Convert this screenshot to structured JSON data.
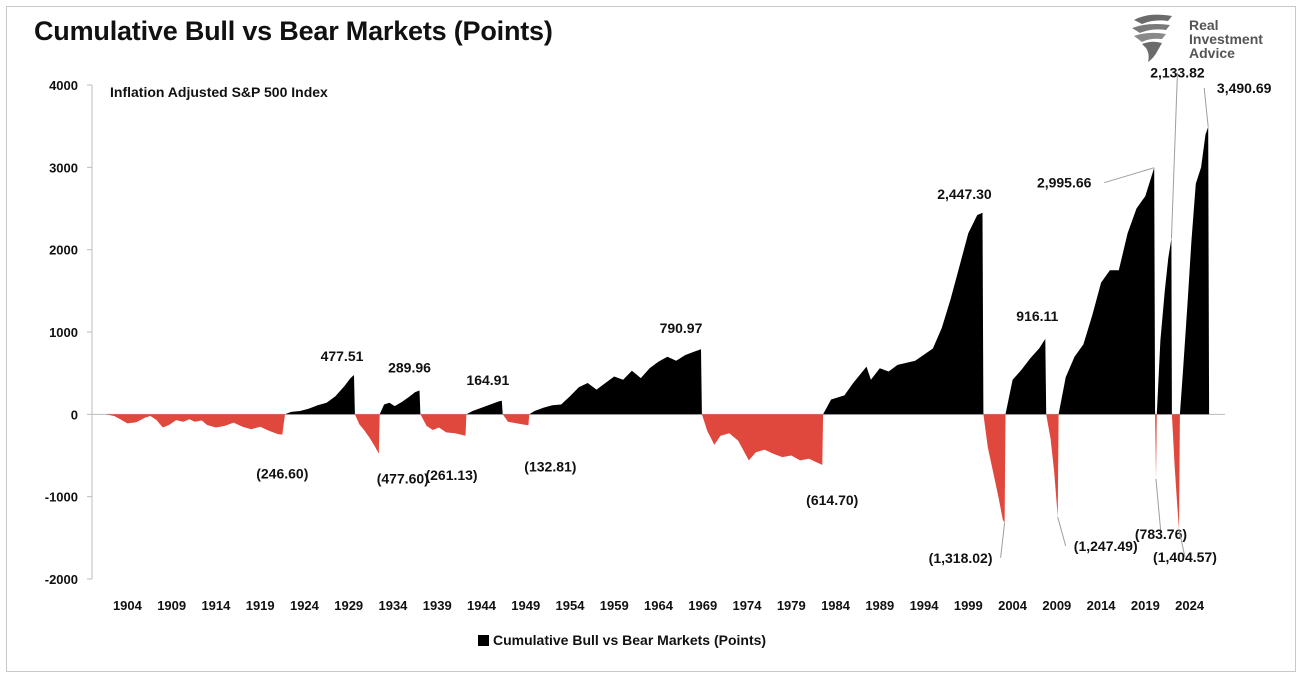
{
  "brand": {
    "line1": "Real",
    "line2": "Investment",
    "line3": "Advice",
    "color": "#555555"
  },
  "chart_data": {
    "type": "area",
    "title": "Cumulative Bull vs Bear Markets (Points)",
    "subtitle": "Inflation Adjusted S&P 500 Index",
    "ylim": [
      -2000,
      4000
    ],
    "yticks": [
      -2000,
      -1000,
      0,
      1000,
      2000,
      3000,
      4000
    ],
    "xlim": [
      1900,
      2028
    ],
    "xticks": [
      "1904",
      "1909",
      "1914",
      "1919",
      "1924",
      "1929",
      "1934",
      "1939",
      "1944",
      "1949",
      "1954",
      "1959",
      "1964",
      "1969",
      "1974",
      "1979",
      "1984",
      "1989",
      "1994",
      "1999",
      "2004",
      "2009",
      "2014",
      "2019",
      "2024"
    ],
    "grid": false,
    "legend": {
      "position": "bottom-center",
      "label": "Cumulative Bull vs Bear Markets (Points)"
    },
    "colors": {
      "bull": "#000000",
      "bear": "#e0473d"
    },
    "segments": [
      {
        "kind": "bear",
        "start": 1901.5,
        "end": 1921.8,
        "trough": -246.6,
        "label": "(246.60)",
        "path": [
          [
            1901.5,
            0
          ],
          [
            1902.5,
            -20
          ],
          [
            1903.2,
            -60
          ],
          [
            1904,
            -110
          ],
          [
            1905,
            -95
          ],
          [
            1906,
            -40
          ],
          [
            1906.6,
            -20
          ],
          [
            1907.3,
            -70
          ],
          [
            1908,
            -160
          ],
          [
            1908.7,
            -130
          ],
          [
            1909.5,
            -70
          ],
          [
            1910.3,
            -90
          ],
          [
            1911,
            -60
          ],
          [
            1911.6,
            -90
          ],
          [
            1912.4,
            -75
          ],
          [
            1913,
            -130
          ],
          [
            1914,
            -160
          ],
          [
            1915,
            -140
          ],
          [
            1916,
            -100
          ],
          [
            1917,
            -150
          ],
          [
            1918,
            -180
          ],
          [
            1919,
            -150
          ],
          [
            1920,
            -200
          ],
          [
            1921,
            -240
          ],
          [
            1921.5,
            -246.6
          ],
          [
            1921.8,
            0
          ]
        ]
      },
      {
        "kind": "bull",
        "start": 1921.8,
        "end": 1929.7,
        "peak": 477.51,
        "label": "477.51",
        "path": [
          [
            1921.8,
            0
          ],
          [
            1922.5,
            30
          ],
          [
            1923.5,
            40
          ],
          [
            1924.5,
            70
          ],
          [
            1925.5,
            110
          ],
          [
            1926.5,
            140
          ],
          [
            1927.5,
            220
          ],
          [
            1928.5,
            340
          ],
          [
            1929.2,
            440
          ],
          [
            1929.6,
            477.51
          ],
          [
            1929.7,
            0
          ]
        ]
      },
      {
        "kind": "bear",
        "start": 1929.7,
        "end": 1932.5,
        "trough": -477.6,
        "label": "(477.60)",
        "path": [
          [
            1929.7,
            0
          ],
          [
            1930.2,
            -120
          ],
          [
            1930.8,
            -200
          ],
          [
            1931.4,
            -290
          ],
          [
            1932,
            -400
          ],
          [
            1932.4,
            -477.6
          ],
          [
            1932.5,
            0
          ]
        ]
      },
      {
        "kind": "bull",
        "start": 1932.5,
        "end": 1937.1,
        "peak": 289.96,
        "label": "289.96",
        "path": [
          [
            1932.5,
            0
          ],
          [
            1933,
            120
          ],
          [
            1933.6,
            140
          ],
          [
            1934.2,
            100
          ],
          [
            1935,
            150
          ],
          [
            1935.8,
            210
          ],
          [
            1936.5,
            270
          ],
          [
            1937,
            289.96
          ],
          [
            1937.1,
            0
          ]
        ]
      },
      {
        "kind": "bear",
        "start": 1937.1,
        "end": 1942.3,
        "trough": -261.13,
        "label": "(261.13)",
        "path": [
          [
            1937.1,
            0
          ],
          [
            1937.8,
            -140
          ],
          [
            1938.5,
            -190
          ],
          [
            1939.2,
            -160
          ],
          [
            1940,
            -220
          ],
          [
            1941,
            -230
          ],
          [
            1941.8,
            -250
          ],
          [
            1942.2,
            -261.13
          ],
          [
            1942.3,
            0
          ]
        ]
      },
      {
        "kind": "bull",
        "start": 1942.3,
        "end": 1946.4,
        "peak": 164.91,
        "label": "164.91",
        "path": [
          [
            1942.3,
            0
          ],
          [
            1943,
            40
          ],
          [
            1944,
            80
          ],
          [
            1945,
            120
          ],
          [
            1946,
            160
          ],
          [
            1946.3,
            164.91
          ],
          [
            1946.4,
            0
          ]
        ]
      },
      {
        "kind": "bear",
        "start": 1946.4,
        "end": 1949.4,
        "trough": -132.81,
        "label": "(132.81)",
        "path": [
          [
            1946.4,
            0
          ],
          [
            1947,
            -90
          ],
          [
            1948,
            -110
          ],
          [
            1948.8,
            -125
          ],
          [
            1949.3,
            -132.81
          ],
          [
            1949.4,
            0
          ]
        ]
      },
      {
        "kind": "bull",
        "start": 1949.4,
        "end": 1968.9,
        "peak": 790.97,
        "label": "790.97",
        "path": [
          [
            1949.4,
            0
          ],
          [
            1950,
            40
          ],
          [
            1951,
            80
          ],
          [
            1952,
            110
          ],
          [
            1953,
            120
          ],
          [
            1954,
            220
          ],
          [
            1955,
            330
          ],
          [
            1956,
            380
          ],
          [
            1957,
            300
          ],
          [
            1958,
            380
          ],
          [
            1959,
            460
          ],
          [
            1960,
            420
          ],
          [
            1961,
            530
          ],
          [
            1962,
            440
          ],
          [
            1963,
            560
          ],
          [
            1964,
            640
          ],
          [
            1965,
            700
          ],
          [
            1966,
            650
          ],
          [
            1967,
            720
          ],
          [
            1968,
            760
          ],
          [
            1968.8,
            790.97
          ],
          [
            1968.9,
            0
          ]
        ]
      },
      {
        "kind": "bear",
        "start": 1968.9,
        "end": 1982.6,
        "trough": -614.7,
        "label": "(614.70)",
        "path": [
          [
            1968.9,
            0
          ],
          [
            1969.5,
            -200
          ],
          [
            1970.3,
            -370
          ],
          [
            1971,
            -260
          ],
          [
            1972,
            -230
          ],
          [
            1973,
            -320
          ],
          [
            1974.2,
            -560
          ],
          [
            1975,
            -460
          ],
          [
            1976,
            -430
          ],
          [
            1977,
            -480
          ],
          [
            1978,
            -520
          ],
          [
            1979,
            -500
          ],
          [
            1980,
            -560
          ],
          [
            1981,
            -540
          ],
          [
            1982,
            -590
          ],
          [
            1982.5,
            -614.7
          ],
          [
            1982.6,
            0
          ]
        ]
      },
      {
        "kind": "bull",
        "start": 1982.6,
        "end": 2000.7,
        "peak": 2447.3,
        "label": "2,447.30",
        "path": [
          [
            1982.6,
            0
          ],
          [
            1983.5,
            180
          ],
          [
            1985,
            230
          ],
          [
            1986,
            380
          ],
          [
            1987.5,
            580
          ],
          [
            1988,
            420
          ],
          [
            1989,
            560
          ],
          [
            1990,
            520
          ],
          [
            1991,
            600
          ],
          [
            1993,
            650
          ],
          [
            1995,
            800
          ],
          [
            1996,
            1050
          ],
          [
            1997,
            1400
          ],
          [
            1998,
            1800
          ],
          [
            1999,
            2200
          ],
          [
            2000,
            2420
          ],
          [
            2000.6,
            2447.3
          ],
          [
            2000.7,
            0
          ]
        ]
      },
      {
        "kind": "bear",
        "start": 2000.7,
        "end": 2003.2,
        "trough": -1318.02,
        "label": "(1,318.02)",
        "path": [
          [
            2000.7,
            0
          ],
          [
            2001.2,
            -400
          ],
          [
            2001.8,
            -700
          ],
          [
            2002.4,
            -1000
          ],
          [
            2002.9,
            -1280
          ],
          [
            2003.1,
            -1318.02
          ],
          [
            2003.2,
            0
          ]
        ]
      },
      {
        "kind": "bull",
        "start": 2003.2,
        "end": 2007.8,
        "peak": 916.11,
        "label": "916.11",
        "path": [
          [
            2003.2,
            0
          ],
          [
            2004,
            420
          ],
          [
            2005,
            540
          ],
          [
            2006,
            680
          ],
          [
            2007,
            800
          ],
          [
            2007.7,
            916.11
          ],
          [
            2007.8,
            0
          ]
        ]
      },
      {
        "kind": "bear",
        "start": 2007.8,
        "end": 2009.2,
        "trough": -1247.49,
        "label": "(1,247.49)",
        "path": [
          [
            2007.8,
            0
          ],
          [
            2008.3,
            -300
          ],
          [
            2008.7,
            -700
          ],
          [
            2009,
            -1100
          ],
          [
            2009.1,
            -1247.49
          ],
          [
            2009.2,
            0
          ]
        ]
      },
      {
        "kind": "bull",
        "start": 2009.2,
        "end": 2020.1,
        "peak": 2995.66,
        "label": "2,995.66",
        "path": [
          [
            2009.2,
            0
          ],
          [
            2010,
            450
          ],
          [
            2011,
            700
          ],
          [
            2012,
            850
          ],
          [
            2013,
            1200
          ],
          [
            2014,
            1600
          ],
          [
            2015,
            1750
          ],
          [
            2016,
            1750
          ],
          [
            2017,
            2200
          ],
          [
            2018,
            2500
          ],
          [
            2019,
            2650
          ],
          [
            2020,
            2995.66
          ],
          [
            2020.1,
            0
          ]
        ]
      },
      {
        "kind": "bear",
        "start": 2020.1,
        "end": 2020.3,
        "trough": -783.76,
        "label": "(783.76)",
        "path": [
          [
            2020.1,
            0
          ],
          [
            2020.2,
            -783.76
          ],
          [
            2020.3,
            0
          ]
        ]
      },
      {
        "kind": "bull",
        "start": 2020.3,
        "end": 2022.0,
        "peak": 2133.82,
        "label": "2,133.82",
        "path": [
          [
            2020.3,
            0
          ],
          [
            2020.7,
            900
          ],
          [
            2021.2,
            1500
          ],
          [
            2021.6,
            1900
          ],
          [
            2021.95,
            2133.82
          ],
          [
            2022.0,
            0
          ]
        ]
      },
      {
        "kind": "bear",
        "start": 2022.0,
        "end": 2022.9,
        "trough": -1404.57,
        "label": "(1,404.57)",
        "path": [
          [
            2022.0,
            0
          ],
          [
            2022.3,
            -600
          ],
          [
            2022.6,
            -1100
          ],
          [
            2022.8,
            -1404.57
          ],
          [
            2022.9,
            0
          ]
        ]
      },
      {
        "kind": "bull",
        "start": 2022.9,
        "end": 2026.2,
        "peak": 3490.69,
        "label": "3,490.69",
        "path": [
          [
            2022.9,
            0
          ],
          [
            2023.3,
            600
          ],
          [
            2023.8,
            1400
          ],
          [
            2024.2,
            2100
          ],
          [
            2024.7,
            2800
          ],
          [
            2025.3,
            3000
          ],
          [
            2025.8,
            3400
          ],
          [
            2026.1,
            3490.69
          ],
          [
            2026.2,
            0
          ]
        ]
      }
    ]
  }
}
